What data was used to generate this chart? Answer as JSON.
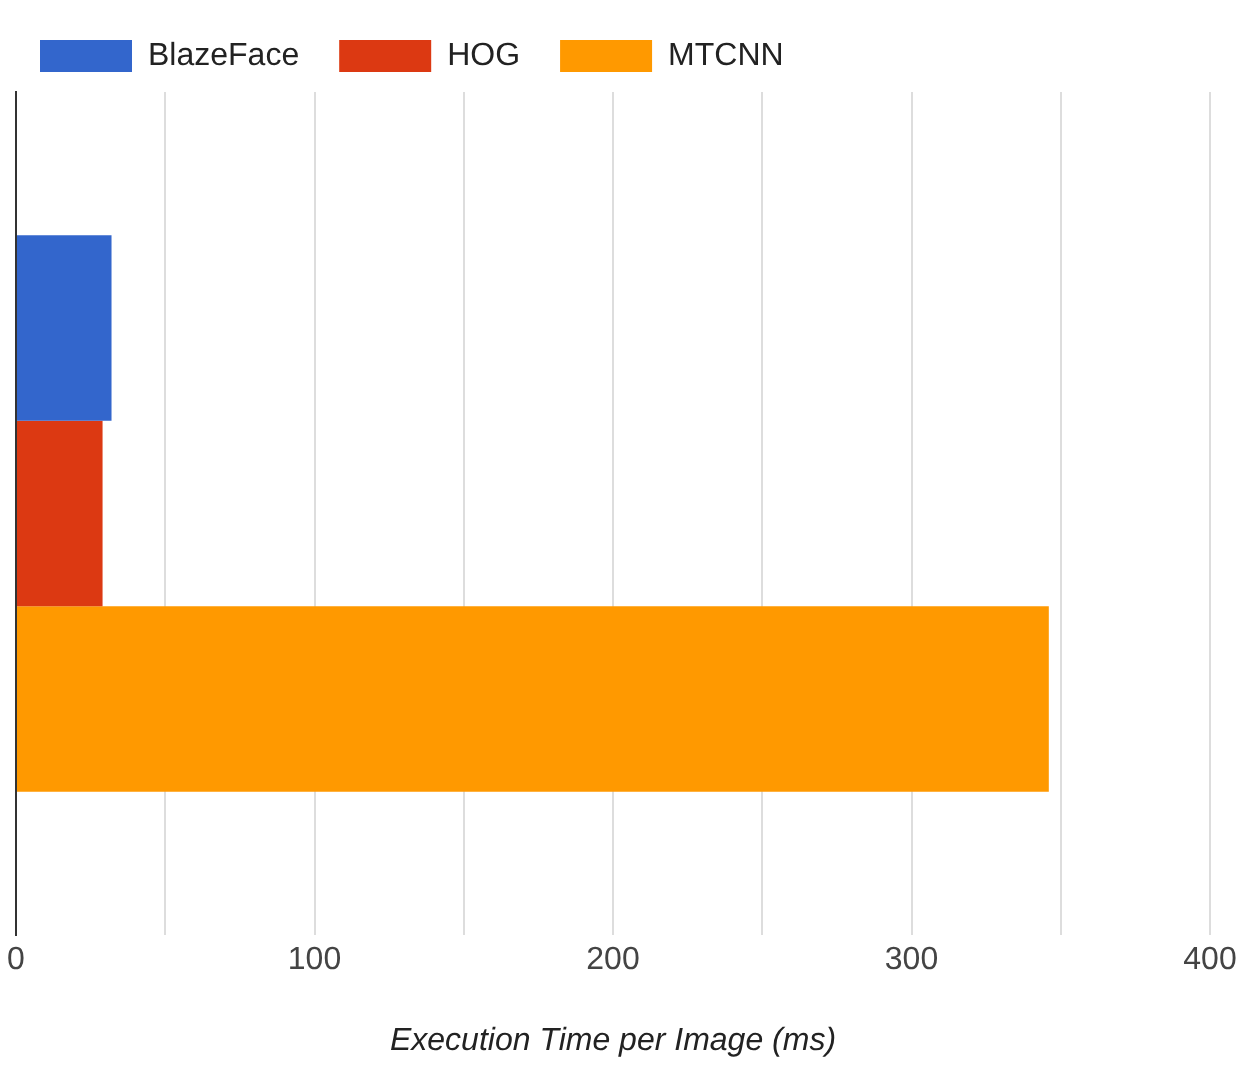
{
  "chart_data": {
    "type": "bar",
    "orientation": "horizontal",
    "xlabel": "Execution Time per Image (ms)",
    "categories": [
      null
    ],
    "series": [
      {
        "name": "BlazeFace",
        "color": "#3366cc",
        "values": [
          32
        ]
      },
      {
        "name": "HOG",
        "color": "#dc3912",
        "values": [
          29
        ]
      },
      {
        "name": "MTCNN",
        "color": "#ff9900",
        "values": [
          346
        ]
      }
    ],
    "xlim": [
      0,
      400
    ],
    "xticks": [
      0,
      {
        "value": 50,
        "label": null
      },
      100,
      {
        "value": 150,
        "label": null
      },
      200,
      {
        "value": 250,
        "label": null
      },
      300,
      {
        "value": 350,
        "label": null
      },
      400
    ],
    "grid": "x",
    "legend": "top left"
  }
}
